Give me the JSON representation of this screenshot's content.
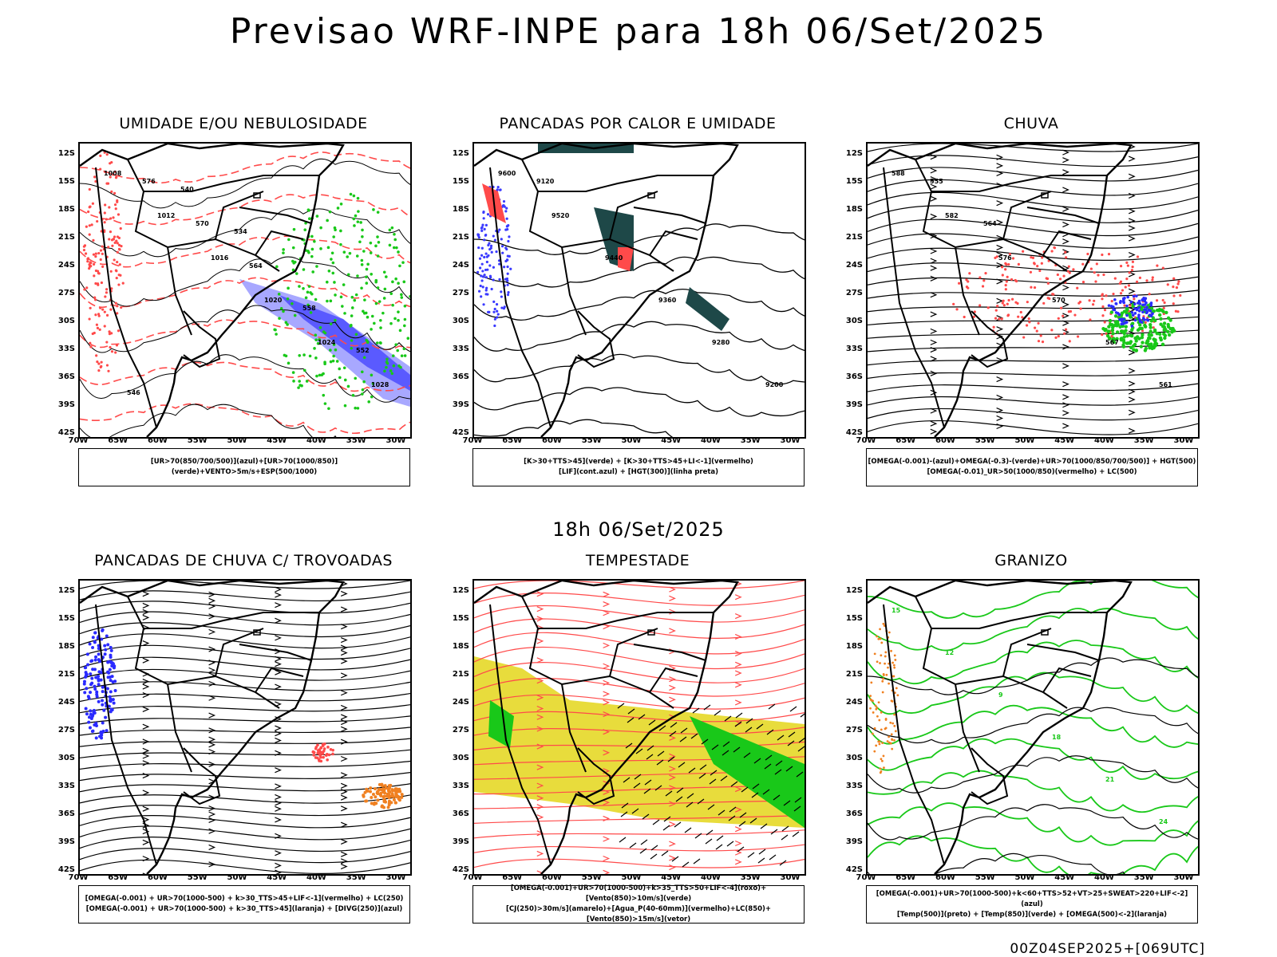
{
  "main_title": "Previsao WRF-INPE  para 18h 06/Set/2025",
  "mid_title": "18h 06/Set/2025",
  "stamp": "00Z04SEP2025+[069UTC]",
  "axes": {
    "lat_labels": [
      "12S",
      "15S",
      "18S",
      "21S",
      "24S",
      "27S",
      "30S",
      "33S",
      "36S",
      "39S",
      "42S"
    ],
    "lon_labels": [
      "70W",
      "65W",
      "60W",
      "55W",
      "50W",
      "45W",
      "40W",
      "35W",
      "30W"
    ]
  },
  "panels": [
    {
      "title": "UMIDADE E/OU NEBULOSIDADE",
      "legend": [
        "[UR>70(850/700/500)](azul)+[UR>70(1000/850)](verde)+VENTO>5m/s+ESP(500/1000)"
      ],
      "contour_labels": [
        "1008",
        "1012",
        "1016",
        "1020",
        "1024",
        "1028",
        "576",
        "570",
        "564",
        "558",
        "552",
        "546",
        "540",
        "534"
      ]
    },
    {
      "title": "PANCADAS POR CALOR E UMIDADE",
      "legend": [
        "[K>30+TTS>45](verde)  +  [K>30+TTS>45+LI<-1](vermelho)",
        "[LIF](cont.azul)  +  [HGT(300)](linha preta)"
      ],
      "contour_labels": [
        "9600",
        "9520",
        "9440",
        "9360",
        "9280",
        "9200",
        "9120"
      ]
    },
    {
      "title": "CHUVA",
      "legend": [
        "[OMEGA(-0.001)-(azul)+OMEGA(-0.3)-(verde)+UR>70(1000/850/700/500)]  +  HGT(500)",
        "[OMEGA(-0.01)_UR>50(1000/850)(vermelho) + LC(500)"
      ],
      "contour_labels": [
        "588",
        "582",
        "576",
        "570",
        "567",
        "561",
        "555",
        "564"
      ]
    },
    {
      "title": "PANCADAS DE CHUVA C/ TROVOADAS",
      "legend": [
        "[OMEGA(-0.001) + UR>70(1000-500) + k>30_TTS>45+LIF<-1](vermelho) + LC(250)",
        "[OMEGA(-0.001) + UR>70(1000-500) + k>30_TTS>45](laranja) + [DIVG(250)](azul)"
      ],
      "contour_labels": []
    },
    {
      "title": "TEMPESTADE",
      "legend": [
        "[OMEGA(-0.001)+UR>70(1000-500)+k>35_TTS>50+LIF<-4](roxo)+[Vento(850)>10m/s](verde)",
        "[CJ(250)>30m/s](amarelo)+[Agua_P(40-60mm)](vermelho)+LC(850)+[Vento(850)>15m/s](vetor)"
      ],
      "contour_labels": []
    },
    {
      "title": "GRANIZO",
      "legend": [
        "[OMEGA(-0.001)+UR>70(1000-500)+k<60+TTS>52+VT>25+SWEAT>220+LIF<-2](azul)",
        "[Temp(500)](preto)  +  [Temp(850)](verde)  +  [OMEGA(500)<-2](laranja)"
      ],
      "contour_labels": [
        "15",
        "12",
        "9",
        "18",
        "21",
        "24"
      ]
    }
  ],
  "colors": {
    "blue_fill": "#5a5aff",
    "light_blue_fill": "#a8a8ff",
    "green": "#19c819",
    "red": "#ff4a4a",
    "dark_teal": "#1e4848",
    "yellow": "#e8dc3c",
    "orange": "#f08020"
  }
}
